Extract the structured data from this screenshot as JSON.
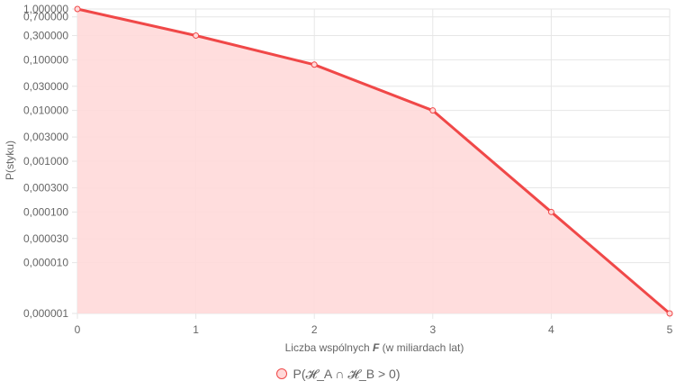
{
  "chart_data": {
    "type": "line",
    "fill": true,
    "y_scale": "log",
    "x": [
      0,
      1,
      2,
      3,
      4,
      5
    ],
    "series": [
      {
        "name": "P(𝓗_A ∩ 𝓗_B > 0)",
        "values": [
          1.0,
          0.3,
          0.08,
          0.01,
          0.0001,
          1e-06
        ]
      }
    ],
    "xlabel": {
      "pre": "Liczba wspólnych ",
      "bold": "F",
      "post": " (w miliardach lat)"
    },
    "ylabel": "P(styku)",
    "xlim": [
      0,
      5
    ],
    "ylim": [
      1e-06,
      1.0
    ],
    "x_ticks": [
      "0",
      "1",
      "2",
      "3",
      "4",
      "5"
    ],
    "y_ticks": [
      {
        "value": 1.0,
        "label": "1,000000"
      },
      {
        "value": 0.7,
        "label": "0,700000"
      },
      {
        "value": 0.3,
        "label": "0,300000"
      },
      {
        "value": 0.1,
        "label": "0,100000"
      },
      {
        "value": 0.03,
        "label": "0,030000"
      },
      {
        "value": 0.01,
        "label": "0,010000"
      },
      {
        "value": 0.003,
        "label": "0,003000"
      },
      {
        "value": 0.001,
        "label": "0,001000"
      },
      {
        "value": 0.0003,
        "label": "0,000300"
      },
      {
        "value": 0.0001,
        "label": "0,000100"
      },
      {
        "value": 3e-05,
        "label": "0,000030"
      },
      {
        "value": 1e-05,
        "label": "0,000010"
      },
      {
        "value": 1e-06,
        "label": "0,000001"
      }
    ],
    "grid": true,
    "legend_position": "bottom",
    "colors": {
      "line": "#f04848",
      "fill": "#ffd9d9",
      "grid": "#e6e6e6",
      "text": "#666666"
    }
  }
}
